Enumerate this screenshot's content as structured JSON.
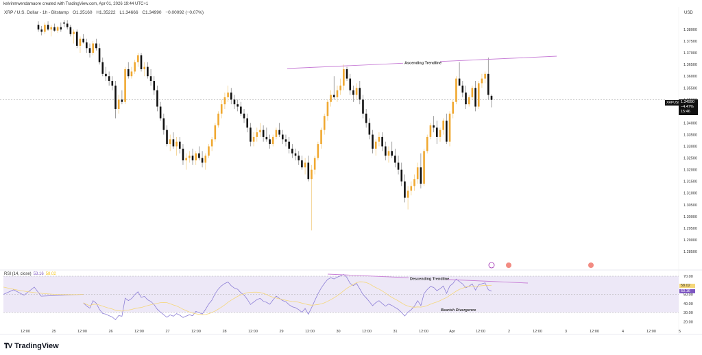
{
  "attribution": "kelvinmwendamaore created with TradingView.com, Apr 01, 2026 19:44 UTC+1",
  "legend": {
    "symbol": "XRP / U.S. Dollar - 1h - Bitstamp",
    "open": "O1.35160",
    "high": "H1.35222",
    "low": "L1.34666",
    "close": "C1.34990",
    "change": "−0.00092 (−0.07%)"
  },
  "price_axis": {
    "currency": "USD",
    "ticks": [
      "1.38000",
      "1.37500",
      "1.37000",
      "1.36500",
      "1.36000",
      "1.35500",
      "1.35000",
      "1.34500",
      "1.34000",
      "1.33500",
      "1.33000",
      "1.32500",
      "1.32000",
      "1.31500",
      "1.31000",
      "1.30500",
      "1.30000",
      "1.29500",
      "1.29000",
      "1.28500"
    ]
  },
  "last_price": {
    "symbol_tag": "XRPUSD",
    "price": "1.34990",
    "change_pct": "−4.47%",
    "countdown": "15:46"
  },
  "rsi": {
    "label": "RSI (14, close)",
    "value": "53.16",
    "ma_value": "58.02",
    "ticks": [
      "70.00",
      "60.00",
      "50.00",
      "40.00",
      "30.00",
      "20.00"
    ],
    "value_color": "#7e57c2",
    "ma_color": "#f5c518"
  },
  "time_axis": [
    "12:00",
    "25",
    "12:00",
    "26",
    "12:00",
    "27",
    "12:00",
    "28",
    "12:00",
    "29",
    "12:00",
    "30",
    "12:00",
    "31",
    "12:00",
    "Apr",
    "12:00",
    "2",
    "12:00",
    "3",
    "12:00",
    "4",
    "12:00",
    "5"
  ],
  "annotations": {
    "ascending": "Ascending Trendline",
    "descending": "Descending Trendline",
    "divergence": "Bearish Divergence"
  },
  "brand": "TradingView",
  "colors": {
    "up": "#f0a830",
    "down": "#111111",
    "trendline": "#c77dd6",
    "rsi_band": "#ede8f7",
    "rsi_line": "#8c7ed6",
    "rsi_ma": "#f5d77a"
  },
  "chart_data": [
    {
      "type": "candlestick",
      "title": "XRP / U.S. Dollar - 1h - Bitstamp",
      "xlabel": "",
      "ylabel": "USD",
      "ylim": [
        1.285,
        1.382
      ],
      "x_ticks": [
        "12:00",
        "25",
        "12:00",
        "26",
        "12:00",
        "27",
        "12:00",
        "28",
        "12:00",
        "29",
        "12:00",
        "30",
        "12:00",
        "31",
        "12:00",
        "Apr",
        "12:00",
        "2",
        "12:00",
        "3",
        "12:00",
        "4",
        "12:00",
        "5"
      ],
      "ohlc": [
        [
          1.382,
          1.3835,
          1.379,
          1.38
        ],
        [
          1.38,
          1.3815,
          1.3775,
          1.379
        ],
        [
          1.379,
          1.383,
          1.378,
          1.382
        ],
        [
          1.382,
          1.3835,
          1.3795,
          1.38
        ],
        [
          1.38,
          1.382,
          1.377,
          1.381
        ],
        [
          1.381,
          1.3825,
          1.379,
          1.3795
        ],
        [
          1.3795,
          1.3815,
          1.3785,
          1.381
        ],
        [
          1.381,
          1.383,
          1.379,
          1.38
        ],
        [
          1.383,
          1.384,
          1.381,
          1.3825
        ],
        [
          1.3825,
          1.384,
          1.38,
          1.381
        ],
        [
          1.381,
          1.382,
          1.377,
          1.378
        ],
        [
          1.378,
          1.38,
          1.374,
          1.379
        ],
        [
          1.379,
          1.38,
          1.372,
          1.373
        ],
        [
          1.373,
          1.377,
          1.37,
          1.376
        ],
        [
          1.376,
          1.378,
          1.374,
          1.3745
        ],
        [
          1.3745,
          1.376,
          1.37,
          1.372
        ],
        [
          1.372,
          1.374,
          1.368,
          1.37
        ],
        [
          1.37,
          1.375,
          1.369,
          1.374
        ],
        [
          1.374,
          1.376,
          1.371,
          1.372
        ],
        [
          1.372,
          1.374,
          1.365,
          1.366
        ],
        [
          1.366,
          1.368,
          1.36,
          1.361
        ],
        [
          1.361,
          1.364,
          1.358,
          1.36
        ],
        [
          1.36,
          1.362,
          1.356,
          1.358
        ],
        [
          1.358,
          1.36,
          1.354,
          1.356
        ],
        [
          1.356,
          1.358,
          1.342,
          1.346
        ],
        [
          1.346,
          1.352,
          1.344,
          1.35
        ],
        [
          1.35,
          1.354,
          1.348,
          1.349
        ],
        [
          1.349,
          1.364,
          1.348,
          1.363
        ],
        [
          1.363,
          1.366,
          1.359,
          1.36
        ],
        [
          1.36,
          1.364,
          1.359,
          1.362
        ],
        [
          1.362,
          1.367,
          1.361,
          1.366
        ],
        [
          1.366,
          1.37,
          1.364,
          1.369
        ],
        [
          1.369,
          1.37,
          1.362,
          1.363
        ],
        [
          1.363,
          1.366,
          1.36,
          1.364
        ],
        [
          1.364,
          1.366,
          1.359,
          1.36
        ],
        [
          1.36,
          1.363,
          1.356,
          1.358
        ],
        [
          1.358,
          1.36,
          1.352,
          1.354
        ],
        [
          1.354,
          1.356,
          1.345,
          1.347
        ],
        [
          1.347,
          1.349,
          1.341,
          1.342
        ],
        [
          1.342,
          1.344,
          1.335,
          1.337
        ],
        [
          1.337,
          1.339,
          1.33,
          1.331
        ],
        [
          1.331,
          1.335,
          1.328,
          1.333
        ],
        [
          1.333,
          1.336,
          1.329,
          1.33
        ],
        [
          1.33,
          1.334,
          1.326,
          1.332
        ],
        [
          1.332,
          1.334,
          1.327,
          1.329
        ],
        [
          1.329,
          1.331,
          1.322,
          1.324
        ],
        [
          1.324,
          1.327,
          1.32,
          1.325
        ],
        [
          1.325,
          1.328,
          1.323,
          1.326
        ],
        [
          1.326,
          1.329,
          1.322,
          1.324
        ],
        [
          1.324,
          1.328,
          1.322,
          1.327
        ],
        [
          1.327,
          1.33,
          1.324,
          1.325
        ],
        [
          1.325,
          1.328,
          1.321,
          1.323
        ],
        [
          1.323,
          1.327,
          1.32,
          1.326
        ],
        [
          1.326,
          1.331,
          1.325,
          1.33
        ],
        [
          1.33,
          1.334,
          1.328,
          1.333
        ],
        [
          1.333,
          1.34,
          1.332,
          1.339
        ],
        [
          1.339,
          1.345,
          1.338,
          1.344
        ],
        [
          1.344,
          1.35,
          1.342,
          1.348
        ],
        [
          1.348,
          1.353,
          1.346,
          1.351
        ],
        [
          1.351,
          1.356,
          1.349,
          1.353
        ],
        [
          1.353,
          1.355,
          1.348,
          1.35
        ],
        [
          1.35,
          1.352,
          1.346,
          1.348
        ],
        [
          1.348,
          1.35,
          1.345,
          1.347
        ],
        [
          1.347,
          1.349,
          1.343,
          1.344
        ],
        [
          1.344,
          1.346,
          1.34,
          1.342
        ],
        [
          1.342,
          1.344,
          1.336,
          1.338
        ],
        [
          1.338,
          1.34,
          1.33,
          1.332
        ],
        [
          1.332,
          1.336,
          1.33,
          1.334
        ],
        [
          1.334,
          1.338,
          1.332,
          1.336
        ],
        [
          1.336,
          1.34,
          1.334,
          1.337
        ],
        [
          1.337,
          1.339,
          1.332,
          1.334
        ],
        [
          1.334,
          1.338,
          1.332,
          1.333
        ],
        [
          1.333,
          1.335,
          1.329,
          1.331
        ],
        [
          1.331,
          1.335,
          1.33,
          1.334
        ],
        [
          1.334,
          1.338,
          1.333,
          1.337
        ],
        [
          1.337,
          1.34,
          1.334,
          1.335
        ],
        [
          1.335,
          1.337,
          1.331,
          1.333
        ],
        [
          1.333,
          1.335,
          1.33,
          1.332
        ],
        [
          1.332,
          1.334,
          1.327,
          1.329
        ],
        [
          1.329,
          1.331,
          1.325,
          1.327
        ],
        [
          1.327,
          1.329,
          1.324,
          1.326
        ],
        [
          1.326,
          1.328,
          1.322,
          1.324
        ],
        [
          1.324,
          1.326,
          1.32,
          1.321
        ],
        [
          1.321,
          1.325,
          1.318,
          1.323
        ],
        [
          1.323,
          1.326,
          1.315,
          1.316
        ],
        [
          1.316,
          1.322,
          1.294,
          1.32
        ],
        [
          1.32,
          1.326,
          1.318,
          1.325
        ],
        [
          1.325,
          1.332,
          1.324,
          1.331
        ],
        [
          1.331,
          1.338,
          1.329,
          1.337
        ],
        [
          1.337,
          1.344,
          1.335,
          1.343
        ],
        [
          1.343,
          1.35,
          1.341,
          1.349
        ],
        [
          1.349,
          1.354,
          1.347,
          1.352
        ],
        [
          1.352,
          1.36,
          1.35,
          1.351
        ],
        [
          1.351,
          1.356,
          1.349,
          1.354
        ],
        [
          1.354,
          1.359,
          1.352,
          1.356
        ],
        [
          1.356,
          1.365,
          1.354,
          1.363
        ],
        [
          1.363,
          1.364,
          1.358,
          1.359
        ],
        [
          1.359,
          1.361,
          1.352,
          1.354
        ],
        [
          1.354,
          1.356,
          1.349,
          1.352
        ],
        [
          1.352,
          1.357,
          1.35,
          1.355
        ],
        [
          1.355,
          1.358,
          1.348,
          1.35
        ],
        [
          1.35,
          1.352,
          1.342,
          1.344
        ],
        [
          1.344,
          1.346,
          1.338,
          1.34
        ],
        [
          1.34,
          1.342,
          1.333,
          1.335
        ],
        [
          1.335,
          1.337,
          1.327,
          1.329
        ],
        [
          1.329,
          1.333,
          1.326,
          1.332
        ],
        [
          1.332,
          1.336,
          1.33,
          1.334
        ],
        [
          1.334,
          1.336,
          1.328,
          1.33
        ],
        [
          1.33,
          1.332,
          1.324,
          1.326
        ],
        [
          1.326,
          1.33,
          1.323,
          1.328
        ],
        [
          1.328,
          1.332,
          1.325,
          1.326
        ],
        [
          1.326,
          1.329,
          1.321,
          1.323
        ],
        [
          1.323,
          1.326,
          1.318,
          1.32
        ],
        [
          1.32,
          1.323,
          1.313,
          1.315
        ],
        [
          1.315,
          1.318,
          1.306,
          1.308
        ],
        [
          1.308,
          1.313,
          1.303,
          1.311
        ],
        [
          1.311,
          1.315,
          1.309,
          1.313
        ],
        [
          1.313,
          1.318,
          1.311,
          1.316
        ],
        [
          1.316,
          1.323,
          1.314,
          1.321
        ],
        [
          1.321,
          1.327,
          1.312,
          1.314
        ],
        [
          1.314,
          1.329,
          1.313,
          1.328
        ],
        [
          1.328,
          1.335,
          1.327,
          1.334
        ],
        [
          1.334,
          1.34,
          1.333,
          1.339
        ],
        [
          1.339,
          1.343,
          1.336,
          1.338
        ],
        [
          1.338,
          1.341,
          1.331,
          1.334
        ],
        [
          1.334,
          1.338,
          1.332,
          1.337
        ],
        [
          1.337,
          1.342,
          1.335,
          1.341
        ],
        [
          1.341,
          1.344,
          1.331,
          1.332
        ],
        [
          1.332,
          1.345,
          1.33,
          1.344
        ],
        [
          1.344,
          1.35,
          1.342,
          1.349
        ],
        [
          1.349,
          1.36,
          1.348,
          1.359
        ],
        [
          1.359,
          1.366,
          1.358,
          1.356
        ],
        [
          1.356,
          1.358,
          1.351,
          1.353
        ],
        [
          1.353,
          1.356,
          1.346,
          1.348
        ],
        [
          1.348,
          1.352,
          1.347,
          1.351
        ],
        [
          1.351,
          1.356,
          1.35,
          1.355
        ],
        [
          1.355,
          1.358,
          1.345,
          1.347
        ],
        [
          1.347,
          1.358,
          1.346,
          1.357
        ],
        [
          1.357,
          1.361,
          1.355,
          1.359
        ],
        [
          1.359,
          1.362,
          1.357,
          1.361
        ],
        [
          1.361,
          1.368,
          1.35,
          1.352
        ],
        [
          1.3516,
          1.3522,
          1.3467,
          1.3499
        ]
      ]
    },
    {
      "type": "line",
      "title": "RSI (14, close)",
      "ylim": [
        20,
        70
      ],
      "bands": {
        "upper": 70,
        "middle": 50,
        "lower": 30
      },
      "series": [
        {
          "name": "RSI",
          "last": 53.16
        },
        {
          "name": "RSI-based MA",
          "last": 58.02
        }
      ]
    }
  ]
}
